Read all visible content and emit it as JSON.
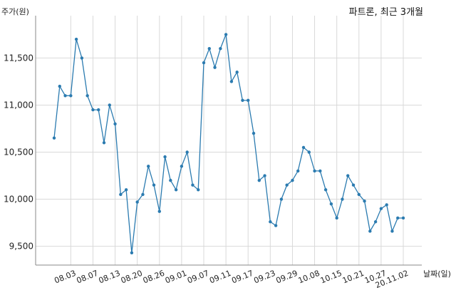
{
  "chart_data": {
    "type": "line",
    "title": "파트론, 최근 3개월",
    "ylabel": "주가(원)",
    "xlabel": "날짜(일)",
    "ylim": [
      9300,
      11950
    ],
    "yticks": [
      9500,
      10000,
      10500,
      11000,
      11500
    ],
    "ytick_labels": [
      "9,500",
      "10,000",
      "10,500",
      "11,000",
      "11,500"
    ],
    "grid": true,
    "line_color": "#2b7bb0",
    "x": [
      "07-29",
      "07-30",
      "07-31",
      "08-03",
      "08-04",
      "08-05",
      "08-06",
      "08-07",
      "08-10",
      "08-11",
      "08-12",
      "08-13",
      "08-14",
      "08-18",
      "08-19",
      "08-20",
      "08-21",
      "08-24",
      "08-25",
      "08-26",
      "08-27",
      "08-28",
      "08-31",
      "09-01",
      "09-02",
      "09-03",
      "09-04",
      "09-07",
      "09-08",
      "09-09",
      "09-10",
      "09-11",
      "09-14",
      "09-15",
      "09-16",
      "09-17",
      "09-18",
      "09-21",
      "09-22",
      "09-23",
      "09-24",
      "09-25",
      "09-28",
      "09-29",
      "10-05",
      "10-06",
      "10-07",
      "10-08",
      "10-12",
      "10-13",
      "10-14",
      "10-15",
      "10-16",
      "10-19",
      "10-20",
      "10-21",
      "10-22",
      "10-23",
      "10-26",
      "10-27",
      "10-28",
      "10-29",
      "10-30",
      "11-02"
    ],
    "values": [
      10650,
      11200,
      11100,
      11100,
      11700,
      11500,
      11100,
      10950,
      10950,
      10600,
      11000,
      10800,
      10050,
      10100,
      9430,
      9970,
      10050,
      10350,
      10150,
      9870,
      10450,
      10200,
      10100,
      10350,
      10500,
      10150,
      10100,
      11450,
      11600,
      11400,
      11600,
      11750,
      11250,
      11350,
      11050,
      11050,
      10700,
      10200,
      10250,
      9760,
      9720,
      10000,
      10150,
      10200,
      10300,
      10550,
      10500,
      10300,
      10300,
      10100,
      9950,
      9800,
      10000,
      10250,
      10150,
      10050,
      9980,
      9660,
      9760,
      9900,
      9940,
      9660,
      9800,
      9800
    ],
    "xtick_labels": [
      "08.03",
      "08.07",
      "08.13",
      "08.20",
      "08.26",
      "09.01",
      "09.07",
      "09.11",
      "09.17",
      "09.23",
      "09.29",
      "10.08",
      "10.15",
      "10.21",
      "10.27",
      "20.11.02"
    ],
    "xtick_dates": [
      "08-03",
      "08-07",
      "08-13",
      "08-20",
      "08-26",
      "09-01",
      "09-07",
      "09-11",
      "09-17",
      "09-23",
      "09-29",
      "10-08",
      "10-15",
      "10-21",
      "10-27",
      "11-02"
    ]
  }
}
